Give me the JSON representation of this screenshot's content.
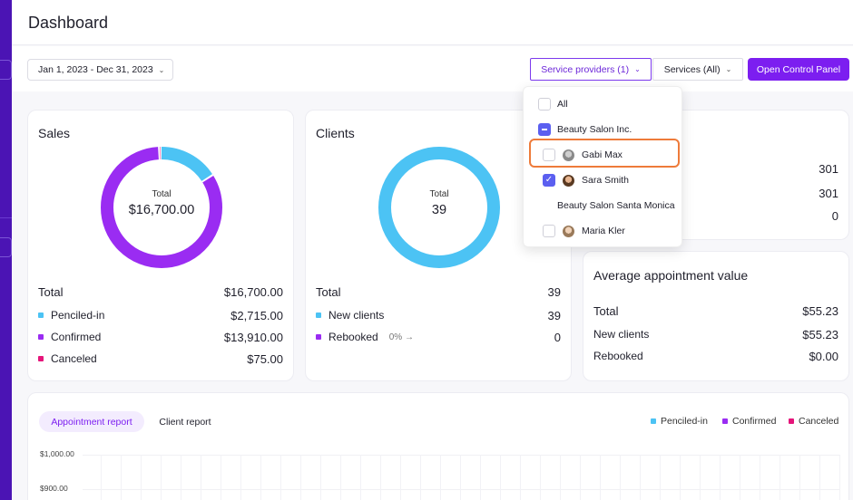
{
  "header": {
    "title": "Dashboard"
  },
  "toolbar": {
    "date_range": "Jan 1, 2023 - Dec 31, 2023",
    "service_providers": "Service providers (1)",
    "services": "Services (All)",
    "open_control_panel": "Open Control Panel"
  },
  "sales": {
    "title": "Sales",
    "total_label": "Total",
    "total_value": "$16,700.00",
    "rows": [
      {
        "label": "Total",
        "value": "$16,700.00"
      },
      {
        "label": "Penciled-in",
        "value": "$2,715.00"
      },
      {
        "label": "Confirmed",
        "value": "$13,910.00"
      },
      {
        "label": "Canceled",
        "value": "$75.00"
      }
    ],
    "segments": [
      {
        "name": "Penciled-in",
        "fraction": 0.1626,
        "color": "#4cc3f4"
      },
      {
        "name": "Confirmed",
        "fraction": 0.833,
        "color": "#9a2cf2"
      },
      {
        "name": "Canceled",
        "fraction": 0.0045,
        "color": "#e5157a"
      }
    ]
  },
  "clients": {
    "title": "Clients",
    "total_label": "Total",
    "total_value": "39",
    "rows": [
      {
        "label": "Total",
        "value": "39"
      },
      {
        "label": "New clients",
        "value": "39"
      },
      {
        "label": "Rebooked",
        "pct": "0% →",
        "value": "0"
      }
    ],
    "segments": [
      {
        "name": "New clients",
        "fraction": 1.0,
        "color": "#4cc3f4"
      }
    ]
  },
  "appointments_partial": {
    "values": [
      "301",
      "301",
      "0"
    ]
  },
  "avg_value": {
    "title": "Average appointment value",
    "rows": [
      {
        "label": "Total",
        "value": "$55.23"
      },
      {
        "label": "New clients",
        "value": "$55.23"
      },
      {
        "label": "Rebooked",
        "value": "$0.00"
      }
    ]
  },
  "dropdown": {
    "items": [
      {
        "label": "All",
        "state": "unchecked",
        "avatar": false
      },
      {
        "label": "Beauty Salon Inc.",
        "state": "partial",
        "avatar": false
      },
      {
        "label": "Gabi Max",
        "state": "unchecked",
        "avatar": true
      },
      {
        "label": "Sara Smith",
        "state": "checked",
        "avatar": true
      },
      {
        "label": "Beauty Salon Santa Monica",
        "state": "none",
        "avatar": false
      },
      {
        "label": "Maria Kler",
        "state": "unchecked",
        "avatar": true
      }
    ]
  },
  "report": {
    "tabs": [
      "Appointment report",
      "Client report"
    ],
    "legend": [
      {
        "label": "Penciled-in",
        "color": "#4cc3f4"
      },
      {
        "label": "Confirmed",
        "color": "#9a2cf2"
      },
      {
        "label": "Canceled",
        "color": "#e5157a"
      }
    ],
    "y_labels": [
      "$1,000.00",
      "$900.00"
    ]
  },
  "colors": {
    "accent": "#7c1ef0",
    "penciled": "#4cc3f4",
    "confirmed": "#9a2cf2",
    "canceled": "#e5157a",
    "highlight": "#ee7b3a"
  }
}
